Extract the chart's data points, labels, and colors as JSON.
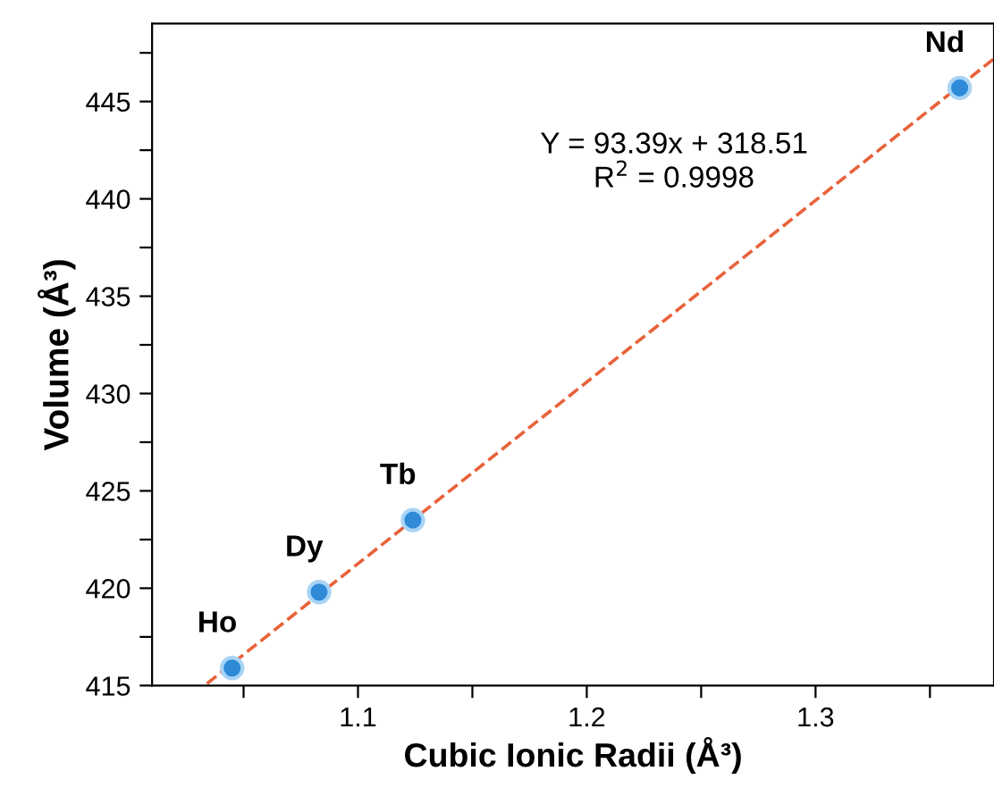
{
  "chart_data": {
    "type": "scatter",
    "xlabel": "Cubic Ionic Radii (Å³)",
    "ylabel": "Volume (Å³)",
    "series": [
      {
        "color": "#2f8ad8",
        "marker": "circle",
        "x": [
          1.045,
          1.083,
          1.124,
          1.363
        ],
        "values": [
          415.9,
          419.8,
          423.5,
          445.7
        ]
      },
      {
        "type": "line",
        "color": "#e8623a",
        "line_style": "dashed",
        "marker": "none",
        "x": [
          1.034,
          1.378
        ],
        "values": [
          415.1,
          447.2
        ]
      }
    ],
    "annotations": [
      {
        "text": "Ho",
        "x": 1.045,
        "y": 415.9
      },
      {
        "text": "Dy",
        "x": 1.083,
        "y": 419.8
      },
      {
        "text": "Tb",
        "x": 1.124,
        "y": 423.5
      },
      {
        "text": "Nd",
        "x": 1.363,
        "y": 445.7
      },
      "Y = 93.39x + 318.51\nR$^{2}$ = 0.9998"
    ],
    "xlim": [
      1.01,
      1.378
    ],
    "ylim": [
      415,
      449
    ],
    "xticks": [
      {
        "value": 1.05,
        "label": null
      },
      1.1,
      {
        "value": 1.15,
        "label": null
      },
      1.2,
      {
        "value": 1.25,
        "label": null
      },
      1.3,
      {
        "value": 1.35,
        "label": null
      }
    ],
    "yticks": [
      415,
      {
        "value": 417.5,
        "label": null
      },
      420,
      {
        "value": 422.5,
        "label": null
      },
      425,
      {
        "value": 427.5,
        "label": null
      },
      430,
      {
        "value": 432.5,
        "label": null
      },
      435,
      {
        "value": 437.5,
        "label": null
      },
      440,
      {
        "value": 442.5,
        "label": null
      },
      445,
      {
        "value": 447.5,
        "label": null
      }
    ],
    "grid": false,
    "legend": false
  }
}
